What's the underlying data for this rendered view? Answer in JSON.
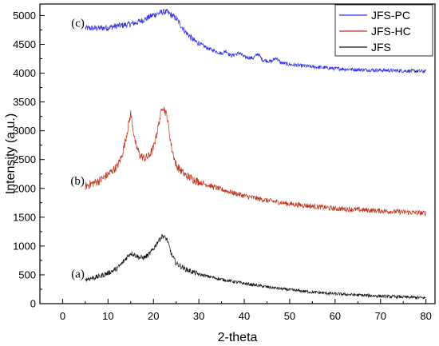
{
  "chart_data": {
    "type": "line",
    "xlabel": "2-theta",
    "ylabel": "Intensity (a.u.)",
    "xlim": [
      -5,
      82
    ],
    "ylim": [
      0,
      5200
    ],
    "xticks": [
      "0",
      "10",
      "20",
      "30",
      "40",
      "50",
      "60",
      "70",
      "80"
    ],
    "yticks": [
      "0",
      "500",
      "1000",
      "1500",
      "2000",
      "2500",
      "3000",
      "3500",
      "4000",
      "4500",
      "5000"
    ],
    "grid": false,
    "legend_position": "top-right",
    "series": [
      {
        "name": "JFS-PC",
        "color": "#2a2ae0",
        "annotation": "(c)",
        "points": [
          [
            5,
            4780
          ],
          [
            8,
            4780
          ],
          [
            10,
            4790
          ],
          [
            12,
            4820
          ],
          [
            14,
            4840
          ],
          [
            16,
            4870
          ],
          [
            18,
            4930
          ],
          [
            20,
            5010
          ],
          [
            22,
            5060
          ],
          [
            23,
            5060
          ],
          [
            25,
            4950
          ],
          [
            27,
            4720
          ],
          [
            29,
            4560
          ],
          [
            30,
            4520
          ],
          [
            32,
            4430
          ],
          [
            35,
            4340
          ],
          [
            36,
            4390
          ],
          [
            37,
            4300
          ],
          [
            39,
            4350
          ],
          [
            40,
            4280
          ],
          [
            42,
            4260
          ],
          [
            43,
            4340
          ],
          [
            44,
            4230
          ],
          [
            46,
            4200
          ],
          [
            47,
            4270
          ],
          [
            48,
            4180
          ],
          [
            50,
            4150
          ],
          [
            55,
            4110
          ],
          [
            60,
            4080
          ],
          [
            65,
            4060
          ],
          [
            70,
            4050
          ],
          [
            75,
            4040
          ],
          [
            80,
            4030
          ]
        ]
      },
      {
        "name": "JFS-HC",
        "color": "#c03018",
        "annotation": "(b)",
        "points": [
          [
            5,
            2040
          ],
          [
            8,
            2130
          ],
          [
            10,
            2240
          ],
          [
            12,
            2380
          ],
          [
            13,
            2550
          ],
          [
            14,
            2900
          ],
          [
            15,
            3300
          ],
          [
            16,
            2780
          ],
          [
            17,
            2580
          ],
          [
            18,
            2520
          ],
          [
            19,
            2560
          ],
          [
            20,
            2700
          ],
          [
            21,
            3050
          ],
          [
            22,
            3450
          ],
          [
            23,
            3250
          ],
          [
            24,
            2700
          ],
          [
            25,
            2400
          ],
          [
            27,
            2230
          ],
          [
            30,
            2110
          ],
          [
            35,
            1980
          ],
          [
            40,
            1870
          ],
          [
            45,
            1790
          ],
          [
            50,
            1730
          ],
          [
            55,
            1690
          ],
          [
            60,
            1650
          ],
          [
            65,
            1630
          ],
          [
            70,
            1610
          ],
          [
            75,
            1590
          ],
          [
            80,
            1570
          ]
        ]
      },
      {
        "name": "JFS",
        "color": "#111111",
        "annotation": "(a)",
        "points": [
          [
            5,
            420
          ],
          [
            8,
            470
          ],
          [
            10,
            530
          ],
          [
            12,
            610
          ],
          [
            13,
            690
          ],
          [
            14,
            790
          ],
          [
            15,
            880
          ],
          [
            16,
            840
          ],
          [
            17,
            800
          ],
          [
            18,
            800
          ],
          [
            19,
            850
          ],
          [
            20,
            950
          ],
          [
            21,
            1080
          ],
          [
            22,
            1180
          ],
          [
            23,
            1110
          ],
          [
            24,
            850
          ],
          [
            25,
            700
          ],
          [
            27,
            600
          ],
          [
            30,
            510
          ],
          [
            35,
            420
          ],
          [
            40,
            350
          ],
          [
            45,
            290
          ],
          [
            50,
            240
          ],
          [
            55,
            200
          ],
          [
            60,
            170
          ],
          [
            65,
            150
          ],
          [
            70,
            130
          ],
          [
            75,
            115
          ],
          [
            80,
            100
          ]
        ]
      }
    ]
  }
}
